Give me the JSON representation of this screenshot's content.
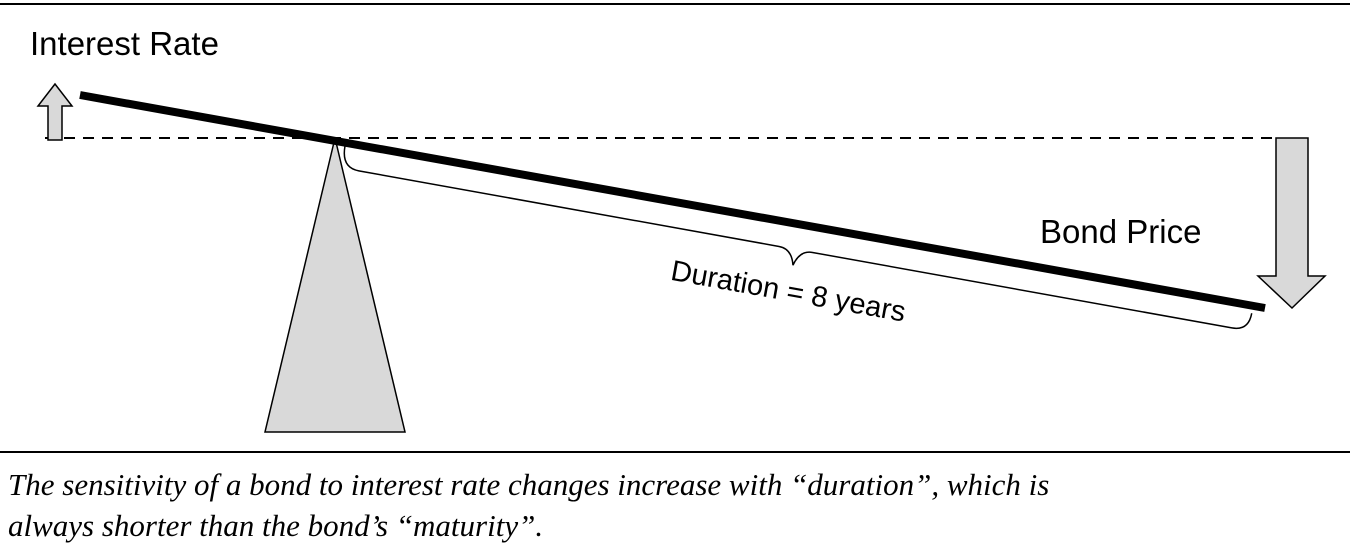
{
  "diagram": {
    "labels": {
      "interest_rate": "Interest Rate",
      "bond_price": "Bond Price",
      "duration": "Duration = 8 years"
    }
  },
  "caption": {
    "lines": [
      "The sensitivity of a bond to interest rate changes increase with “duration”, which is",
      "always shorter than the bond’s “maturity”."
    ]
  }
}
